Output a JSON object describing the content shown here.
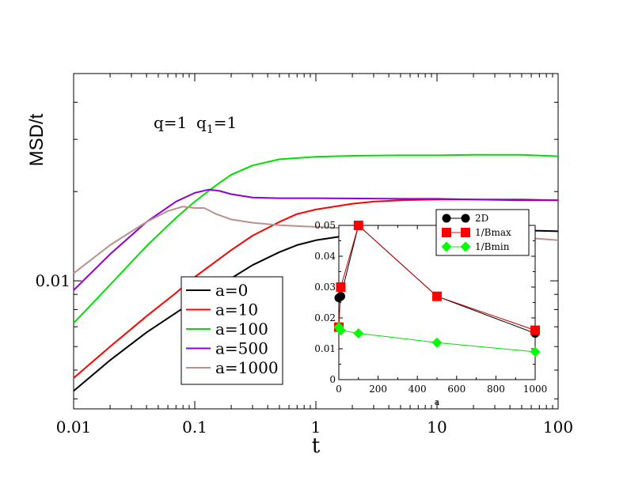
{
  "chart_data": [
    {
      "type": "line",
      "xscale": "log",
      "yscale": "log",
      "xlabel": "t",
      "ylabel": "MSD/t",
      "xlim": [
        0.01,
        100
      ],
      "ylim": [
        0.0037,
        0.05
      ],
      "x_ticks": [
        {
          "value": 0.01,
          "label": "0.01"
        },
        {
          "value": 0.1,
          "label": "0.1"
        },
        {
          "value": 1,
          "label": "1"
        },
        {
          "value": 10,
          "label": "10"
        },
        {
          "value": 100,
          "label": "100"
        }
      ],
      "y_ticks": [
        {
          "value": 0.01,
          "label": "0.01"
        }
      ],
      "annotation": {
        "q": "q=1",
        "q1_prefix": "q",
        "q1_sub": "1",
        "q1_suffix": "=1"
      },
      "legend_position": "bottom-left",
      "series": [
        {
          "name": "a=0",
          "color": "#000000",
          "points": [
            [
              0.01,
              0.00425
            ],
            [
              0.02,
              0.0054
            ],
            [
              0.04,
              0.0067
            ],
            [
              0.07,
              0.0078
            ],
            [
              0.1,
              0.0086
            ],
            [
              0.2,
              0.0102
            ],
            [
              0.3,
              0.0113
            ],
            [
              0.5,
              0.0125
            ],
            [
              0.7,
              0.0132
            ],
            [
              1,
              0.0137
            ],
            [
              2,
              0.0143
            ],
            [
              3,
              0.0145
            ],
            [
              5,
              0.0147
            ],
            [
              10,
              0.0148
            ],
            [
              20,
              0.0148
            ],
            [
              50,
              0.0148
            ],
            [
              100,
              0.0147
            ]
          ]
        },
        {
          "name": "a=10",
          "color": "#ff0000",
          "points": [
            [
              0.01,
              0.0047
            ],
            [
              0.02,
              0.006
            ],
            [
              0.04,
              0.0076
            ],
            [
              0.07,
              0.0091
            ],
            [
              0.1,
              0.0103
            ],
            [
              0.2,
              0.0127
            ],
            [
              0.3,
              0.0142
            ],
            [
              0.5,
              0.0158
            ],
            [
              0.7,
              0.0168
            ],
            [
              1,
              0.0174
            ],
            [
              2,
              0.0182
            ],
            [
              3,
              0.0185
            ],
            [
              5,
              0.0187
            ],
            [
              10,
              0.0188
            ],
            [
              20,
              0.0188
            ],
            [
              50,
              0.0188
            ],
            [
              100,
              0.0187
            ]
          ]
        },
        {
          "name": "a=100",
          "color": "#00e000",
          "points": [
            [
              0.01,
              0.0072
            ],
            [
              0.02,
              0.0097
            ],
            [
              0.04,
              0.0131
            ],
            [
              0.07,
              0.0163
            ],
            [
              0.1,
              0.0185
            ],
            [
              0.15,
              0.021
            ],
            [
              0.2,
              0.0228
            ],
            [
              0.3,
              0.0245
            ],
            [
              0.5,
              0.0257
            ],
            [
              1,
              0.0262
            ],
            [
              2,
              0.0264
            ],
            [
              5,
              0.0265
            ],
            [
              10,
              0.0265
            ],
            [
              20,
              0.0266
            ],
            [
              50,
              0.0266
            ],
            [
              100,
              0.0263
            ]
          ]
        },
        {
          "name": "a=500",
          "color": "#8b00d6",
          "points": [
            [
              0.01,
              0.0093
            ],
            [
              0.02,
              0.0123
            ],
            [
              0.04,
              0.0158
            ],
            [
              0.07,
              0.0185
            ],
            [
              0.1,
              0.0198
            ],
            [
              0.13,
              0.0203
            ],
            [
              0.16,
              0.0201
            ],
            [
              0.2,
              0.0196
            ],
            [
              0.3,
              0.0191
            ],
            [
              0.5,
              0.019
            ],
            [
              1,
              0.019
            ],
            [
              5,
              0.0189
            ],
            [
              10,
              0.0189
            ],
            [
              20,
              0.0188
            ],
            [
              50,
              0.0187
            ],
            [
              100,
              0.0187
            ]
          ]
        },
        {
          "name": "a=1000",
          "color": "#bc8f8f",
          "points": [
            [
              0.01,
              0.0106
            ],
            [
              0.02,
              0.0132
            ],
            [
              0.04,
              0.0158
            ],
            [
              0.06,
              0.0172
            ],
            [
              0.08,
              0.0178
            ],
            [
              0.1,
              0.0176
            ],
            [
              0.12,
              0.0176
            ],
            [
              0.15,
              0.0168
            ],
            [
              0.2,
              0.0161
            ],
            [
              0.3,
              0.0157
            ],
            [
              0.5,
              0.0154
            ],
            [
              1,
              0.0152
            ],
            [
              2,
              0.015
            ],
            [
              5,
              0.0148
            ],
            [
              10,
              0.0145
            ],
            [
              20,
              0.0143
            ],
            [
              50,
              0.014
            ],
            [
              100,
              0.0137
            ]
          ]
        }
      ]
    },
    {
      "type": "line",
      "xlabel": "a",
      "ylabel": "",
      "xlim": [
        0,
        1000
      ],
      "ylim": [
        0,
        0.05
      ],
      "x_ticks": [
        {
          "value": 0,
          "label": "0"
        },
        {
          "value": 200,
          "label": "200"
        },
        {
          "value": 400,
          "label": "400"
        },
        {
          "value": 600,
          "label": "600"
        },
        {
          "value": 800,
          "label": "800"
        },
        {
          "value": 1000,
          "label": "1000"
        }
      ],
      "y_ticks": [
        {
          "value": 0,
          "label": "0"
        },
        {
          "value": 0.01,
          "label": "0.01"
        },
        {
          "value": 0.02,
          "label": "0.02"
        },
        {
          "value": 0.03,
          "label": "0.03"
        },
        {
          "value": 0.04,
          "label": "0.04"
        },
        {
          "value": 0.05,
          "label": "0.05"
        }
      ],
      "legend_position": "top-right",
      "series": [
        {
          "name": "2D",
          "color": "#000000",
          "marker": "circle",
          "points": [
            [
              0,
              0.0265
            ],
            [
              10,
              0.027
            ],
            [
              100,
              0.05
            ],
            [
              500,
              0.027
            ],
            [
              1000,
              0.015
            ]
          ]
        },
        {
          "name": "1/Bmax",
          "color": "#ff0000",
          "marker": "square",
          "points": [
            [
              0,
              0.017
            ],
            [
              10,
              0.03
            ],
            [
              100,
              0.05
            ],
            [
              500,
              0.027
            ],
            [
              1000,
              0.016
            ]
          ]
        },
        {
          "name": "1/Bmin",
          "color": "#00ff00",
          "marker": "diamond",
          "points": [
            [
              0,
              0.017
            ],
            [
              10,
              0.016
            ],
            [
              100,
              0.015
            ],
            [
              500,
              0.012
            ],
            [
              1000,
              0.009
            ]
          ]
        }
      ]
    }
  ]
}
